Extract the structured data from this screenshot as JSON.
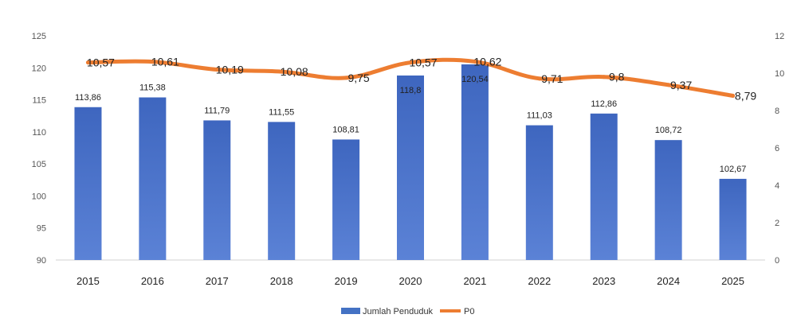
{
  "chart_data": {
    "type": "bar",
    "categories": [
      "2015",
      "2016",
      "2017",
      "2018",
      "2019",
      "2020",
      "2021",
      "2022",
      "2023",
      "2024",
      "2025"
    ],
    "series": [
      {
        "name": "Jumlah Penduduk",
        "type": "bar",
        "axis": "left",
        "values": [
          113.86,
          115.38,
          111.79,
          111.55,
          108.81,
          118.8,
          120.54,
          111.03,
          112.86,
          108.72,
          102.67
        ],
        "labels": [
          "113,86",
          "115,38",
          "111,79",
          "111,55",
          "108,81",
          "118,8",
          "120,54",
          "111,03",
          "112,86",
          "108,72",
          "102,67"
        ]
      },
      {
        "name": "P0",
        "type": "line",
        "axis": "right",
        "values": [
          10.57,
          10.61,
          10.19,
          10.08,
          9.75,
          10.57,
          10.62,
          9.71,
          9.8,
          9.37,
          8.79
        ],
        "labels": [
          "10,57",
          "10,61",
          "10,19",
          "10,08",
          "9,75",
          "10,57",
          "10,62",
          "9,71",
          "9,8",
          "9,37",
          "8,79"
        ]
      }
    ],
    "y_left": {
      "ticks": [
        "90",
        "95",
        "100",
        "105",
        "110",
        "115",
        "120",
        "125"
      ],
      "lim": [
        90,
        125
      ]
    },
    "y_right": {
      "ticks": [
        "0",
        "2",
        "4",
        "6",
        "8",
        "10",
        "12"
      ],
      "lim": [
        0,
        12
      ]
    },
    "title": "",
    "xlabel": "",
    "ylabel": "",
    "grid": false,
    "legend_position": "bottom-center",
    "colors": {
      "bar": "#4472C4",
      "bar_dark": "#2F59B0",
      "line": "#ED7D31"
    }
  }
}
